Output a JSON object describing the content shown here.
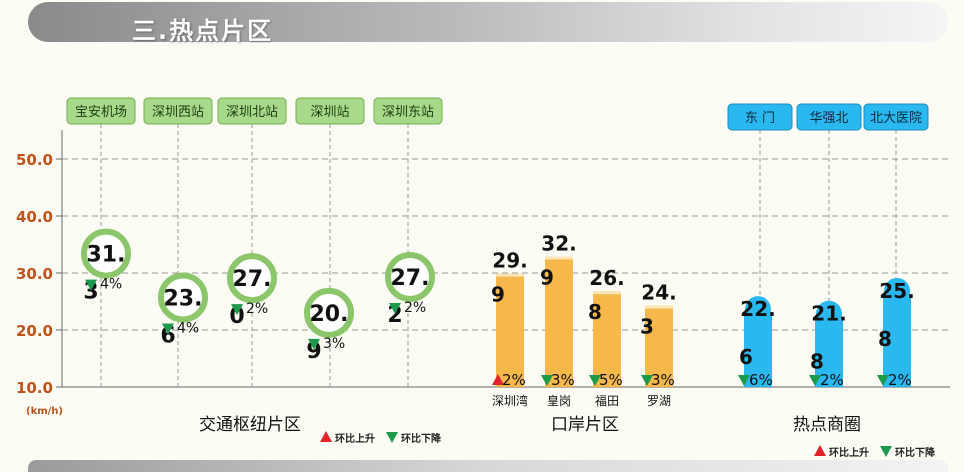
{
  "header": {
    "title": "三.热点片区"
  },
  "chart_data": {
    "type": "bar",
    "unit_label": "(km/h)",
    "ylim": [
      10,
      55
    ],
    "y_ticks": [
      "10.0",
      "20.0",
      "30.0",
      "40.0",
      "50.0"
    ],
    "groups": [
      {
        "name": "交通枢纽片区",
        "style": "circle",
        "items": [
          {
            "tag": "宝安机场",
            "value": 31.3,
            "label_top": "31.",
            "label_bottom": "3",
            "change": "4%",
            "trend": "down"
          },
          {
            "tag": "深圳西站",
            "value": 23.6,
            "label_top": "23.",
            "label_bottom": "6",
            "change": "4%",
            "trend": "down"
          },
          {
            "tag": "深圳北站",
            "value": 27.0,
            "label_top": "27.",
            "label_bottom": "0",
            "change": "2%",
            "trend": "down"
          },
          {
            "tag": "深圳站",
            "value": 20.9,
            "label_top": "20.",
            "label_bottom": "9",
            "change": "3%",
            "trend": "down"
          },
          {
            "tag": "深圳东站",
            "value": 27.2,
            "label_top": "27.",
            "label_bottom": "2",
            "change": "2%",
            "trend": "down"
          }
        ]
      },
      {
        "name": "口岸片区",
        "style": "bar",
        "color": "#f7b84b",
        "items": [
          {
            "category": "深圳湾",
            "value": 29.9,
            "label_top": "29.",
            "label_bottom": "9",
            "change": "2%",
            "trend": "up"
          },
          {
            "category": "皇岗",
            "value": 32.9,
            "label_top": "32.",
            "label_bottom": "9",
            "change": "3%",
            "trend": "down"
          },
          {
            "category": "福田",
            "value": 26.8,
            "label_top": "26.",
            "label_bottom": "8",
            "change": "5%",
            "trend": "down"
          },
          {
            "category": "罗湖",
            "value": 24.3,
            "label_top": "24.",
            "label_bottom": "3",
            "change": "3%",
            "trend": "down"
          }
        ]
      },
      {
        "name": "热点商圈",
        "style": "bar",
        "color": "#2ab8f0",
        "items": [
          {
            "tag": "东 门",
            "value": 22.6,
            "label_top": "22.",
            "label_bottom": "6",
            "change": "6%",
            "trend": "down"
          },
          {
            "tag": "华强北",
            "value": 21.8,
            "label_top": "21.",
            "label_bottom": "8",
            "change": "2%",
            "trend": "down"
          },
          {
            "tag": "北大医院",
            "value": 25.8,
            "label_top": "25.",
            "label_bottom": "8",
            "change": "2%",
            "trend": "down"
          }
        ]
      }
    ],
    "legends": [
      {
        "up": "环比上升",
        "down": "环比下降"
      },
      {
        "up": "环比上升",
        "down": "环比下降"
      }
    ],
    "colors": {
      "up": "#e0242a",
      "down": "#1a9a4a",
      "circle": "#8bc76a",
      "hub_tag": "#a8d98b",
      "mall_tag": "#2ab8f0",
      "axis_text": "#c0531a",
      "grid": "#999999"
    }
  }
}
